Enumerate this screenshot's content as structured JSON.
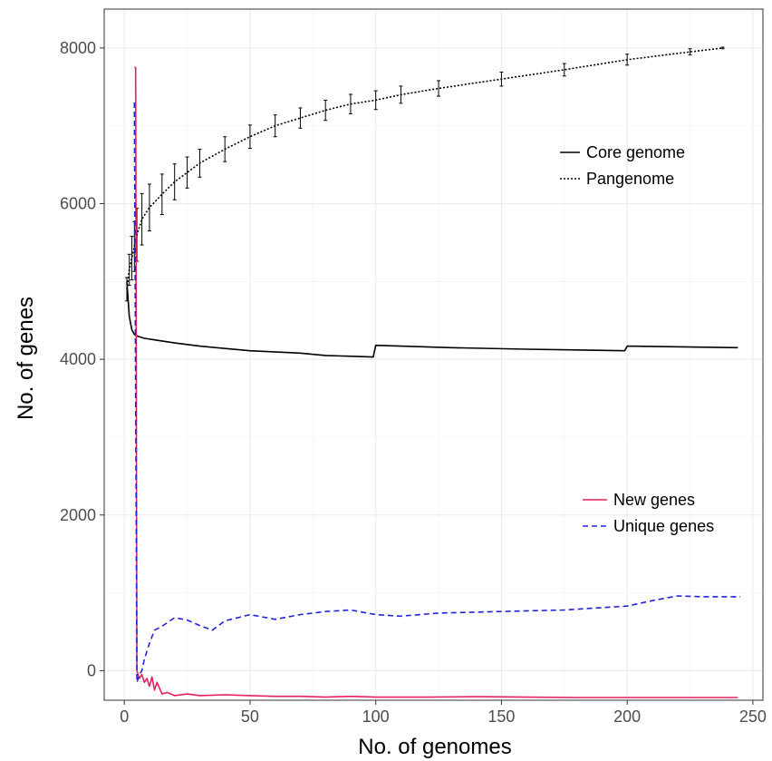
{
  "chart_data": {
    "type": "line",
    "xlabel": "No. of genomes",
    "ylabel": "No. of genes",
    "xlim": [
      -8,
      254
    ],
    "ylim": [
      -380,
      8500
    ],
    "x_ticks": [
      0,
      50,
      100,
      150,
      200,
      250
    ],
    "x_tick_labels": [
      "0",
      "50",
      "100",
      "150",
      "200",
      "250"
    ],
    "y_ticks": [
      0,
      2000,
      4000,
      6000,
      8000
    ],
    "y_tick_labels": [
      "0",
      "2000",
      "4000",
      "6000",
      "8000"
    ],
    "grid": true,
    "legends": [
      {
        "position": "top-right",
        "entries": [
          {
            "label": "Core genome",
            "series": "core"
          },
          {
            "label": "Pangenome",
            "series": "pan"
          }
        ]
      },
      {
        "position": "bottom-right",
        "entries": [
          {
            "label": "New genes",
            "series": "new"
          },
          {
            "label": "Unique genes",
            "series": "unique"
          }
        ]
      }
    ],
    "series": [
      {
        "key": "pan",
        "name": "Pangenome",
        "color": "#000000",
        "dash": "2,2",
        "error_bars": true,
        "x": [
          1,
          2,
          3,
          4,
          5,
          7,
          10,
          15,
          20,
          25,
          30,
          40,
          50,
          60,
          70,
          80,
          90,
          100,
          110,
          125,
          150,
          175,
          200,
          225,
          238
        ],
        "y": [
          4900,
          5150,
          5300,
          5450,
          5600,
          5800,
          5950,
          6120,
          6280,
          6400,
          6520,
          6700,
          6860,
          7000,
          7100,
          7200,
          7280,
          7330,
          7400,
          7480,
          7600,
          7720,
          7850,
          7950,
          8000
        ],
        "err": [
          150,
          200,
          280,
          320,
          340,
          330,
          300,
          260,
          230,
          200,
          180,
          160,
          150,
          140,
          130,
          130,
          125,
          120,
          110,
          100,
          90,
          80,
          70,
          40,
          10
        ]
      },
      {
        "key": "core",
        "name": "Core genome",
        "color": "#000000",
        "dash": "",
        "x": [
          1,
          2,
          3,
          4,
          5,
          8,
          12,
          20,
          30,
          50,
          70,
          80,
          99,
          100,
          130,
          160,
          199,
          200,
          244
        ],
        "y": [
          5000,
          4550,
          4380,
          4320,
          4300,
          4270,
          4250,
          4210,
          4170,
          4110,
          4080,
          4050,
          4030,
          4180,
          4150,
          4130,
          4110,
          4170,
          4150
        ]
      },
      {
        "key": "new",
        "name": "New genes",
        "color": "#e3215a",
        "dash": "",
        "x": [
          4,
          4.5,
          5,
          6,
          7,
          8,
          9,
          10,
          11,
          12,
          13,
          15,
          17,
          20,
          25,
          30,
          40,
          50,
          60,
          70,
          80,
          90,
          100,
          120,
          140,
          160,
          180,
          200,
          220,
          244
        ],
        "y": [
          7750,
          7750,
          0,
          -100,
          -50,
          -150,
          -100,
          -200,
          -80,
          -250,
          -150,
          -300,
          -280,
          -320,
          -300,
          -320,
          -310,
          -320,
          -330,
          -330,
          -340,
          -330,
          -340,
          -340,
          -335,
          -340,
          -345,
          -345,
          -345,
          -345
        ]
      },
      {
        "key": "unique",
        "name": "Unique genes",
        "color": "#2222dd",
        "dash": "6,4",
        "x": [
          4,
          5,
          6,
          7,
          8,
          10,
          12,
          15,
          20,
          25,
          30,
          35,
          40,
          50,
          60,
          70,
          80,
          90,
          100,
          110,
          125,
          150,
          175,
          200,
          210,
          220,
          230,
          245
        ],
        "y": [
          7300,
          -150,
          -50,
          0,
          150,
          350,
          520,
          570,
          680,
          650,
          580,
          520,
          640,
          720,
          660,
          720,
          760,
          780,
          720,
          700,
          740,
          760,
          780,
          830,
          900,
          960,
          950,
          950
        ]
      }
    ]
  }
}
